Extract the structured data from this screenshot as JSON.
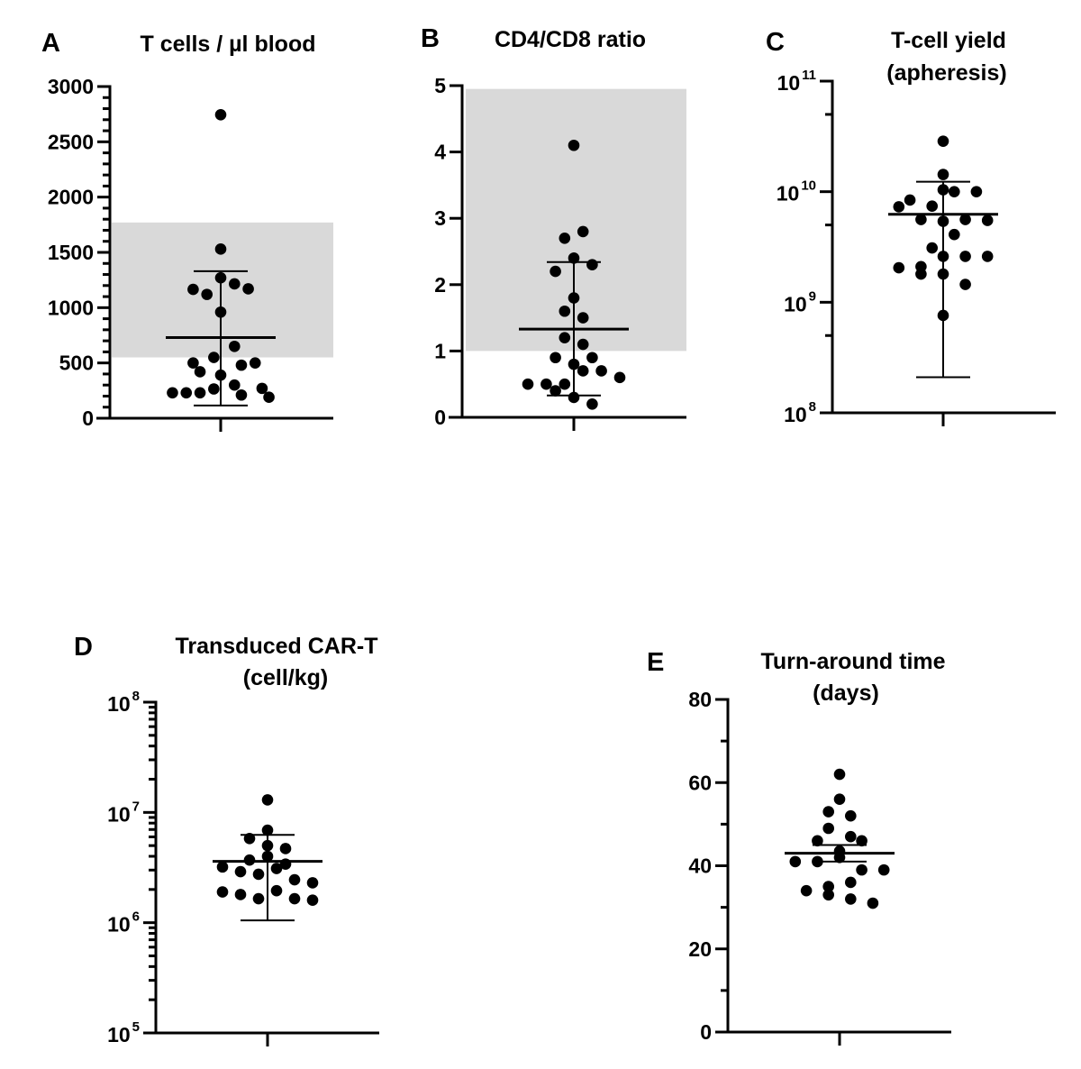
{
  "colors": {
    "ink": "#000000",
    "reference_band": "#d9d9d9",
    "background": "#ffffff"
  },
  "chart_data": [
    {
      "id": "A",
      "type": "scatter",
      "panel_letter": "A",
      "title": "T cells / µl blood",
      "title_lines": [
        "T cells / µl blood"
      ],
      "yscale": "linear",
      "ylim": [
        0,
        3000
      ],
      "yticks": [
        0,
        500,
        1000,
        1500,
        2000,
        2500,
        3000
      ],
      "ytick_labels": [
        "0",
        "500",
        "1000",
        "1500",
        "2000",
        "2500",
        "3000"
      ],
      "yminor_step": 100,
      "reference_band": [
        550,
        1770
      ],
      "summary": {
        "center": 730,
        "upper": 1330,
        "lower": 115,
        "center_type": "mean",
        "error_type": "SD"
      },
      "points": [
        {
          "x_offset": 0,
          "y": 2745
        },
        {
          "x_offset": 0,
          "y": 1530
        },
        {
          "x_offset": 0,
          "y": 1270
        },
        {
          "x_offset": 1,
          "y": 1215
        },
        {
          "x_offset": -2,
          "y": 1165
        },
        {
          "x_offset": -1,
          "y": 1120
        },
        {
          "x_offset": 2,
          "y": 1170
        },
        {
          "x_offset": 0,
          "y": 960
        },
        {
          "x_offset": 1,
          "y": 650
        },
        {
          "x_offset": -0.5,
          "y": 550
        },
        {
          "x_offset": -2,
          "y": 500
        },
        {
          "x_offset": 1.5,
          "y": 480
        },
        {
          "x_offset": 2.5,
          "y": 500
        },
        {
          "x_offset": -1.5,
          "y": 420
        },
        {
          "x_offset": 0,
          "y": 390
        },
        {
          "x_offset": 1,
          "y": 300
        },
        {
          "x_offset": -0.5,
          "y": 265
        },
        {
          "x_offset": -3.5,
          "y": 230
        },
        {
          "x_offset": -2.5,
          "y": 230
        },
        {
          "x_offset": -1.5,
          "y": 230
        },
        {
          "x_offset": 1.5,
          "y": 210
        },
        {
          "x_offset": 3,
          "y": 270
        },
        {
          "x_offset": 3.5,
          "y": 190
        }
      ]
    },
    {
      "id": "B",
      "type": "scatter",
      "panel_letter": "B",
      "title": "CD4/CD8 ratio",
      "title_lines": [
        "CD4/CD8 ratio"
      ],
      "yscale": "linear",
      "ylim": [
        0,
        5
      ],
      "yticks": [
        0,
        1,
        2,
        3,
        4,
        5
      ],
      "ytick_labels": [
        "0",
        "1",
        "2",
        "3",
        "4",
        "5"
      ],
      "yminor_step": null,
      "reference_band": [
        1.0,
        4.95
      ],
      "summary": {
        "center": 1.33,
        "upper": 2.34,
        "lower": 0.33,
        "center_type": "mean",
        "error_type": "SD"
      },
      "points": [
        {
          "x_offset": 0,
          "y": 4.1
        },
        {
          "x_offset": 1,
          "y": 2.8
        },
        {
          "x_offset": -1,
          "y": 2.7
        },
        {
          "x_offset": 0,
          "y": 2.4
        },
        {
          "x_offset": 2,
          "y": 2.3
        },
        {
          "x_offset": -2,
          "y": 2.2
        },
        {
          "x_offset": 0,
          "y": 1.8
        },
        {
          "x_offset": -1,
          "y": 1.6
        },
        {
          "x_offset": 1,
          "y": 1.5
        },
        {
          "x_offset": -1,
          "y": 1.2
        },
        {
          "x_offset": 1,
          "y": 1.1
        },
        {
          "x_offset": -2,
          "y": 0.9
        },
        {
          "x_offset": 2,
          "y": 0.9
        },
        {
          "x_offset": 0,
          "y": 0.8
        },
        {
          "x_offset": 1,
          "y": 0.7
        },
        {
          "x_offset": 3,
          "y": 0.7
        },
        {
          "x_offset": 5,
          "y": 0.6
        },
        {
          "x_offset": -5,
          "y": 0.5
        },
        {
          "x_offset": -3,
          "y": 0.5
        },
        {
          "x_offset": -1,
          "y": 0.5
        },
        {
          "x_offset": -2,
          "y": 0.4
        },
        {
          "x_offset": 0,
          "y": 0.3
        },
        {
          "x_offset": 2,
          "y": 0.2
        }
      ]
    },
    {
      "id": "C",
      "type": "scatter",
      "panel_letter": "C",
      "title": "T-cell yield (apheresis)",
      "title_lines": [
        "T-cell yield",
        "(apheresis)"
      ],
      "yscale": "log",
      "ylim": [
        100000000.0,
        100000000000.0
      ],
      "yticks": [
        100000000.0,
        1000000000.0,
        10000000000.0,
        100000000000.0
      ],
      "ytick_labels": [
        {
          "base": "10",
          "exp": "8"
        },
        {
          "base": "10",
          "exp": "9"
        },
        {
          "base": "10",
          "exp": "10"
        },
        {
          "base": "10",
          "exp": "11"
        }
      ],
      "yminor_ticks": [
        500000000.0,
        5000000000.0,
        50000000000.0
      ],
      "reference_band": null,
      "summary": {
        "center": 6250000000.0,
        "upper": 12300000000.0,
        "lower": 210000000.0,
        "center_type": "mean",
        "error_type": "SD"
      },
      "points": [
        {
          "x_offset": 0,
          "y": 28600000000.0
        },
        {
          "x_offset": 0,
          "y": 14300000000.0
        },
        {
          "x_offset": 0,
          "y": 10400000000.0
        },
        {
          "x_offset": 1,
          "y": 10000000000.0
        },
        {
          "x_offset": 3,
          "y": 10000000000.0
        },
        {
          "x_offset": -3,
          "y": 8400000000.0
        },
        {
          "x_offset": -4,
          "y": 7300000000.0
        },
        {
          "x_offset": -1,
          "y": 7400000000.0
        },
        {
          "x_offset": -2,
          "y": 5600000000.0
        },
        {
          "x_offset": 0,
          "y": 5400000000.0
        },
        {
          "x_offset": 2,
          "y": 5600000000.0
        },
        {
          "x_offset": 4,
          "y": 5500000000.0
        },
        {
          "x_offset": 1,
          "y": 4100000000.0
        },
        {
          "x_offset": -1,
          "y": 3100000000.0
        },
        {
          "x_offset": 0,
          "y": 2600000000.0
        },
        {
          "x_offset": 2,
          "y": 2600000000.0
        },
        {
          "x_offset": 4,
          "y": 2600000000.0
        },
        {
          "x_offset": -4,
          "y": 2050000000.0
        },
        {
          "x_offset": -2,
          "y": 2100000000.0
        },
        {
          "x_offset": -2,
          "y": 1800000000.0
        },
        {
          "x_offset": 0,
          "y": 1800000000.0
        },
        {
          "x_offset": 2,
          "y": 1450000000.0
        },
        {
          "x_offset": 0,
          "y": 760000000.0
        }
      ]
    },
    {
      "id": "D",
      "type": "scatter",
      "panel_letter": "D",
      "title": "Transduced CAR-T (cell/kg)",
      "title_lines": [
        "Transduced CAR-T",
        "(cell/kg)"
      ],
      "yscale": "log",
      "ylim": [
        100000.0,
        100000000.0
      ],
      "yticks": [
        100000.0,
        1000000.0,
        10000000.0,
        100000000.0
      ],
      "ytick_labels": [
        {
          "base": "10",
          "exp": "5"
        },
        {
          "base": "10",
          "exp": "6"
        },
        {
          "base": "10",
          "exp": "7"
        },
        {
          "base": "10",
          "exp": "8"
        }
      ],
      "yminor_ticks": "log-2-to-9",
      "reference_band": null,
      "summary": {
        "center": 3600000.0,
        "upper": 6250000.0,
        "lower": 1050000.0,
        "center_type": "mean",
        "error_type": "SD"
      },
      "points": [
        {
          "x_offset": 0,
          "y": 13000000.0
        },
        {
          "x_offset": 0,
          "y": 6900000.0
        },
        {
          "x_offset": -1,
          "y": 5800000.0
        },
        {
          "x_offset": 0,
          "y": 5000000.0
        },
        {
          "x_offset": 1,
          "y": 4700000.0
        },
        {
          "x_offset": 0,
          "y": 4000000.0
        },
        {
          "x_offset": -1,
          "y": 3700000.0
        },
        {
          "x_offset": 1,
          "y": 3400000.0
        },
        {
          "x_offset": -2.5,
          "y": 3200000.0
        },
        {
          "x_offset": 0.5,
          "y": 3100000.0
        },
        {
          "x_offset": -1.5,
          "y": 2900000.0
        },
        {
          "x_offset": -0.5,
          "y": 2750000.0
        },
        {
          "x_offset": 1.5,
          "y": 2450000.0
        },
        {
          "x_offset": 2.5,
          "y": 2300000.0
        },
        {
          "x_offset": -2.5,
          "y": 1900000.0
        },
        {
          "x_offset": -1.5,
          "y": 1800000.0
        },
        {
          "x_offset": 0.5,
          "y": 1950000.0
        },
        {
          "x_offset": -0.5,
          "y": 1650000.0
        },
        {
          "x_offset": 1.5,
          "y": 1650000.0
        },
        {
          "x_offset": 2.5,
          "y": 1600000.0
        }
      ]
    },
    {
      "id": "E",
      "type": "scatter",
      "panel_letter": "E",
      "title": "Turn-around time (days)",
      "title_lines": [
        "Turn-around time",
        "(days)"
      ],
      "yscale": "linear",
      "ylim": [
        0,
        80
      ],
      "yticks": [
        0,
        20,
        40,
        60,
        80
      ],
      "ytick_labels": [
        "0",
        "20",
        "40",
        "60",
        "80"
      ],
      "yminor_step": 10,
      "reference_band": null,
      "summary": {
        "center": 43,
        "upper": 45,
        "lower": 41,
        "center_type": "mean",
        "error_type": "SEM"
      },
      "points": [
        {
          "x_offset": 0,
          "y": 62
        },
        {
          "x_offset": 0,
          "y": 56
        },
        {
          "x_offset": -1,
          "y": 53
        },
        {
          "x_offset": 1,
          "y": 52
        },
        {
          "x_offset": -1,
          "y": 49
        },
        {
          "x_offset": -2,
          "y": 46
        },
        {
          "x_offset": 1,
          "y": 47
        },
        {
          "x_offset": 2,
          "y": 46
        },
        {
          "x_offset": 0,
          "y": 43.5
        },
        {
          "x_offset": 0,
          "y": 42
        },
        {
          "x_offset": -4,
          "y": 41
        },
        {
          "x_offset": -2,
          "y": 41
        },
        {
          "x_offset": 2,
          "y": 39
        },
        {
          "x_offset": 4,
          "y": 39
        },
        {
          "x_offset": 1,
          "y": 36
        },
        {
          "x_offset": -1,
          "y": 35
        },
        {
          "x_offset": -3,
          "y": 34
        },
        {
          "x_offset": -1,
          "y": 33
        },
        {
          "x_offset": 1,
          "y": 32
        },
        {
          "x_offset": 3,
          "y": 31
        }
      ]
    }
  ]
}
